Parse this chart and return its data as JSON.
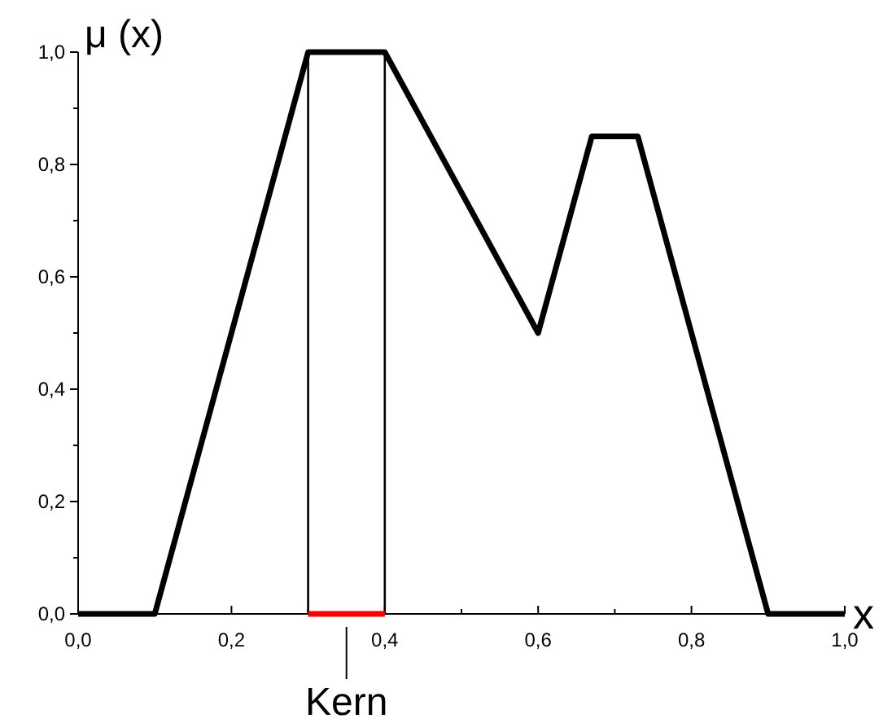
{
  "chart_data": {
    "type": "line",
    "xlabel": "x",
    "ylabel": "μ (x)",
    "x": [
      0.0,
      0.1,
      0.3,
      0.4,
      0.6,
      0.67,
      0.73,
      0.9,
      1.0
    ],
    "series": [
      {
        "color": "#000000",
        "values": [
          0,
          0,
          1,
          1,
          0.5,
          0.85,
          0.85,
          0,
          0
        ]
      },
      {
        "name": "Kern",
        "color": "#ff0000",
        "x": [
          0.3,
          0.4
        ],
        "values": [
          0,
          0
        ]
      }
    ],
    "xlim": [
      0,
      1
    ],
    "xticks": [
      {
        "value": 0,
        "label": "0,0"
      },
      {
        "value": 0.1,
        "label": null
      },
      {
        "value": 0.2,
        "label": "0,2"
      },
      {
        "value": 0.3,
        "label": null
      },
      {
        "value": 0.4,
        "label": "0,4"
      },
      {
        "value": 0.5,
        "label": null
      },
      {
        "value": 0.6,
        "label": "0,6"
      },
      {
        "value": 0.7,
        "label": null
      },
      {
        "value": 0.8,
        "label": "0,8"
      },
      {
        "value": 0.9,
        "label": null
      },
      {
        "value": 1,
        "label": "1,0"
      }
    ],
    "ylim": [
      0,
      1
    ],
    "yticks": [
      {
        "value": 0,
        "label": "0,0"
      },
      {
        "value": 0.1,
        "label": null
      },
      {
        "value": 0.2,
        "label": "0,2"
      },
      {
        "value": 0.3,
        "label": null
      },
      {
        "value": 0.4,
        "label": "0,4"
      },
      {
        "value": 0.5,
        "label": null
      },
      {
        "value": 0.6,
        "label": "0,6"
      },
      {
        "value": 0.7,
        "label": null
      },
      {
        "value": 0.8,
        "label": "0,8"
      },
      {
        "value": 0.9,
        "label": null
      },
      {
        "value": 1,
        "label": "1,0"
      }
    ],
    "ref_lines": [
      {
        "axis": "x",
        "value": 0.3,
        "color": "#000000"
      },
      {
        "axis": "x",
        "value": 0.4,
        "color": "#000000"
      }
    ],
    "marker": "none",
    "line_style": "solid",
    "grid": false,
    "legend": false
  }
}
